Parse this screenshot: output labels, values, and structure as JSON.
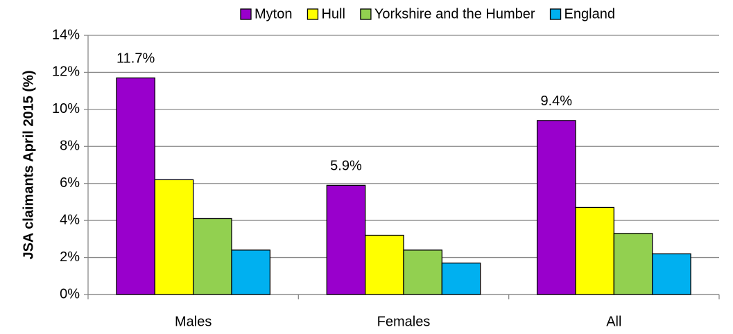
{
  "chart_data": {
    "type": "bar",
    "y_label": "JSA claimants April 2015 (%)",
    "categories": [
      "Males",
      "Females",
      "All"
    ],
    "series": [
      {
        "name": "Myton",
        "color": "#9900cc",
        "values": [
          11.7,
          5.9,
          9.4
        ],
        "value_labels": [
          "11.7%",
          "5.9%",
          "9.4%"
        ]
      },
      {
        "name": "Hull",
        "color": "#ffff00",
        "values": [
          6.2,
          3.2,
          4.7
        ]
      },
      {
        "name": "Yorkshire and the Humber",
        "color": "#92d050",
        "values": [
          4.1,
          2.4,
          3.3
        ]
      },
      {
        "name": "England",
        "color": "#00b0f0",
        "values": [
          2.4,
          1.7,
          2.2
        ]
      }
    ],
    "ylim": [
      0,
      14
    ],
    "yticks": [
      {
        "value": 0,
        "label": "0%"
      },
      {
        "value": 2,
        "label": "2%"
      },
      {
        "value": 4,
        "label": "4%"
      },
      {
        "value": 6,
        "label": "6%"
      },
      {
        "value": 8,
        "label": "8%"
      },
      {
        "value": 10,
        "label": "10%"
      },
      {
        "value": 12,
        "label": "12%"
      },
      {
        "value": 14,
        "label": "14%"
      }
    ],
    "grid": true,
    "legend": "top"
  }
}
